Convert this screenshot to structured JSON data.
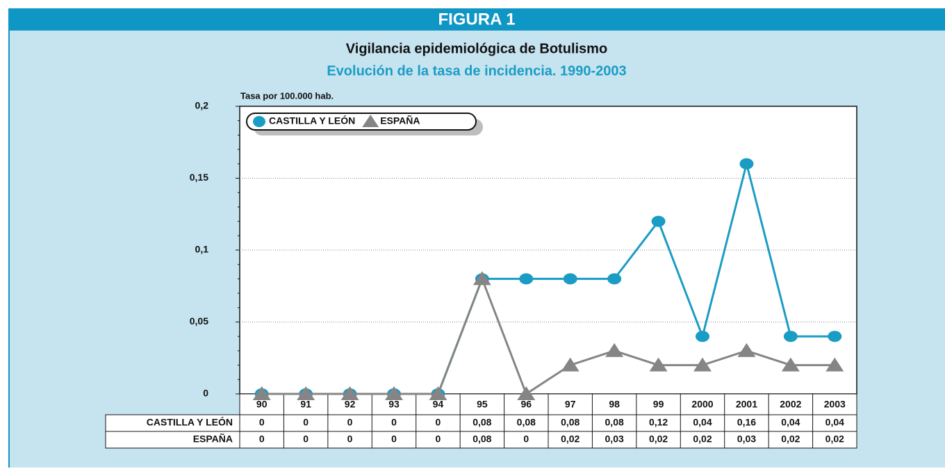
{
  "chart_data": {
    "type": "line",
    "header": "FIGURA 1",
    "title": "Vigilancia epidemiológica de Botulismo",
    "subtitle": "Evolución de la tasa de incidencia. 1990-2003",
    "ylabel": "Tasa por 100.000 hab.",
    "categories": [
      "90",
      "91",
      "92",
      "93",
      "94",
      "95",
      "96",
      "97",
      "98",
      "99",
      "2000",
      "2001",
      "2002",
      "2003"
    ],
    "series": [
      {
        "name": "CASTILLA Y LEÓN",
        "color": "#1b9cc4",
        "marker": "circle",
        "values": [
          0,
          0,
          0,
          0,
          0,
          0.08,
          0.08,
          0.08,
          0.08,
          0.12,
          0.04,
          0.16,
          0.04,
          0.04
        ],
        "value_labels": [
          "0",
          "0",
          "0",
          "0",
          "0",
          "0,08",
          "0,08",
          "0,08",
          "0,08",
          "0,12",
          "0,04",
          "0,16",
          "0,04",
          "0,04"
        ]
      },
      {
        "name": "ESPAÑA",
        "color": "#858585",
        "marker": "triangle",
        "values": [
          0,
          0,
          0,
          0,
          0,
          0.08,
          0,
          0.02,
          0.03,
          0.02,
          0.02,
          0.03,
          0.02,
          0.02
        ],
        "value_labels": [
          "0",
          "0",
          "0",
          "0",
          "0",
          "0,08",
          "0",
          "0,02",
          "0,03",
          "0,02",
          "0,02",
          "0,03",
          "0,02",
          "0,02"
        ]
      }
    ],
    "ylim": [
      0,
      0.2
    ],
    "yticks": [
      0,
      {
        "value": 0.05,
        "label": "0,05"
      },
      {
        "value": 0.1,
        "label": "0,1"
      },
      {
        "value": 0.15,
        "label": "0,15"
      },
      {
        "value": 0.2,
        "label": "0,2"
      }
    ],
    "grid": true,
    "legend": "upper left"
  }
}
